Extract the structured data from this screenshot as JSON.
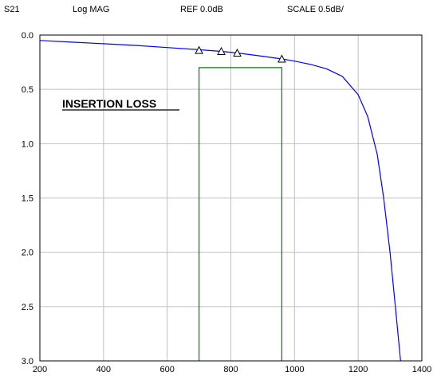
{
  "header": {
    "param": "S21",
    "format": "Log MAG",
    "ref": "REF 0.0dB",
    "scale": "SCALE 0.5dB/"
  },
  "chart_data": {
    "type": "line",
    "title": "",
    "xlabel": "",
    "ylabel": "",
    "annotation": "INSERTION LOSS",
    "xlim": [
      200,
      1400
    ],
    "ylim": [
      0.0,
      3.0
    ],
    "y_inverted": true,
    "x_ticks": [
      200,
      400,
      600,
      800,
      1000,
      1200,
      1400
    ],
    "y_ticks": [
      0.0,
      0.5,
      1.0,
      1.5,
      2.0,
      2.5,
      3.0
    ],
    "x_tick_labels": [
      "200",
      "400",
      "600",
      "800",
      "1000",
      "1200",
      "1400"
    ],
    "y_tick_labels": [
      "0.0",
      "0.5",
      "1.0",
      "1.5",
      "2.0",
      "2.5",
      "3.0"
    ],
    "grid": true,
    "series": [
      {
        "color": "#0000ff",
        "x": [
          200,
          300,
          400,
          500,
          600,
          700,
          770,
          820,
          900,
          960,
          1000,
          1050,
          1100,
          1150,
          1200,
          1230,
          1260,
          1280,
          1300,
          1320,
          1333
        ],
        "y": [
          0.05,
          0.065,
          0.08,
          0.095,
          0.115,
          0.135,
          0.15,
          0.165,
          0.195,
          0.22,
          0.24,
          0.27,
          0.31,
          0.38,
          0.55,
          0.75,
          1.1,
          1.5,
          2.0,
          2.6,
          3.0
        ]
      }
    ],
    "markers": {
      "shape": "triangle",
      "points": [
        {
          "x": 700,
          "y": 0.14
        },
        {
          "x": 770,
          "y": 0.15
        },
        {
          "x": 820,
          "y": 0.165
        },
        {
          "x": 960,
          "y": 0.22
        }
      ]
    },
    "spec_mask": {
      "color": "#008000",
      "x_range": [
        700,
        960
      ],
      "y_top": 0.3
    }
  }
}
